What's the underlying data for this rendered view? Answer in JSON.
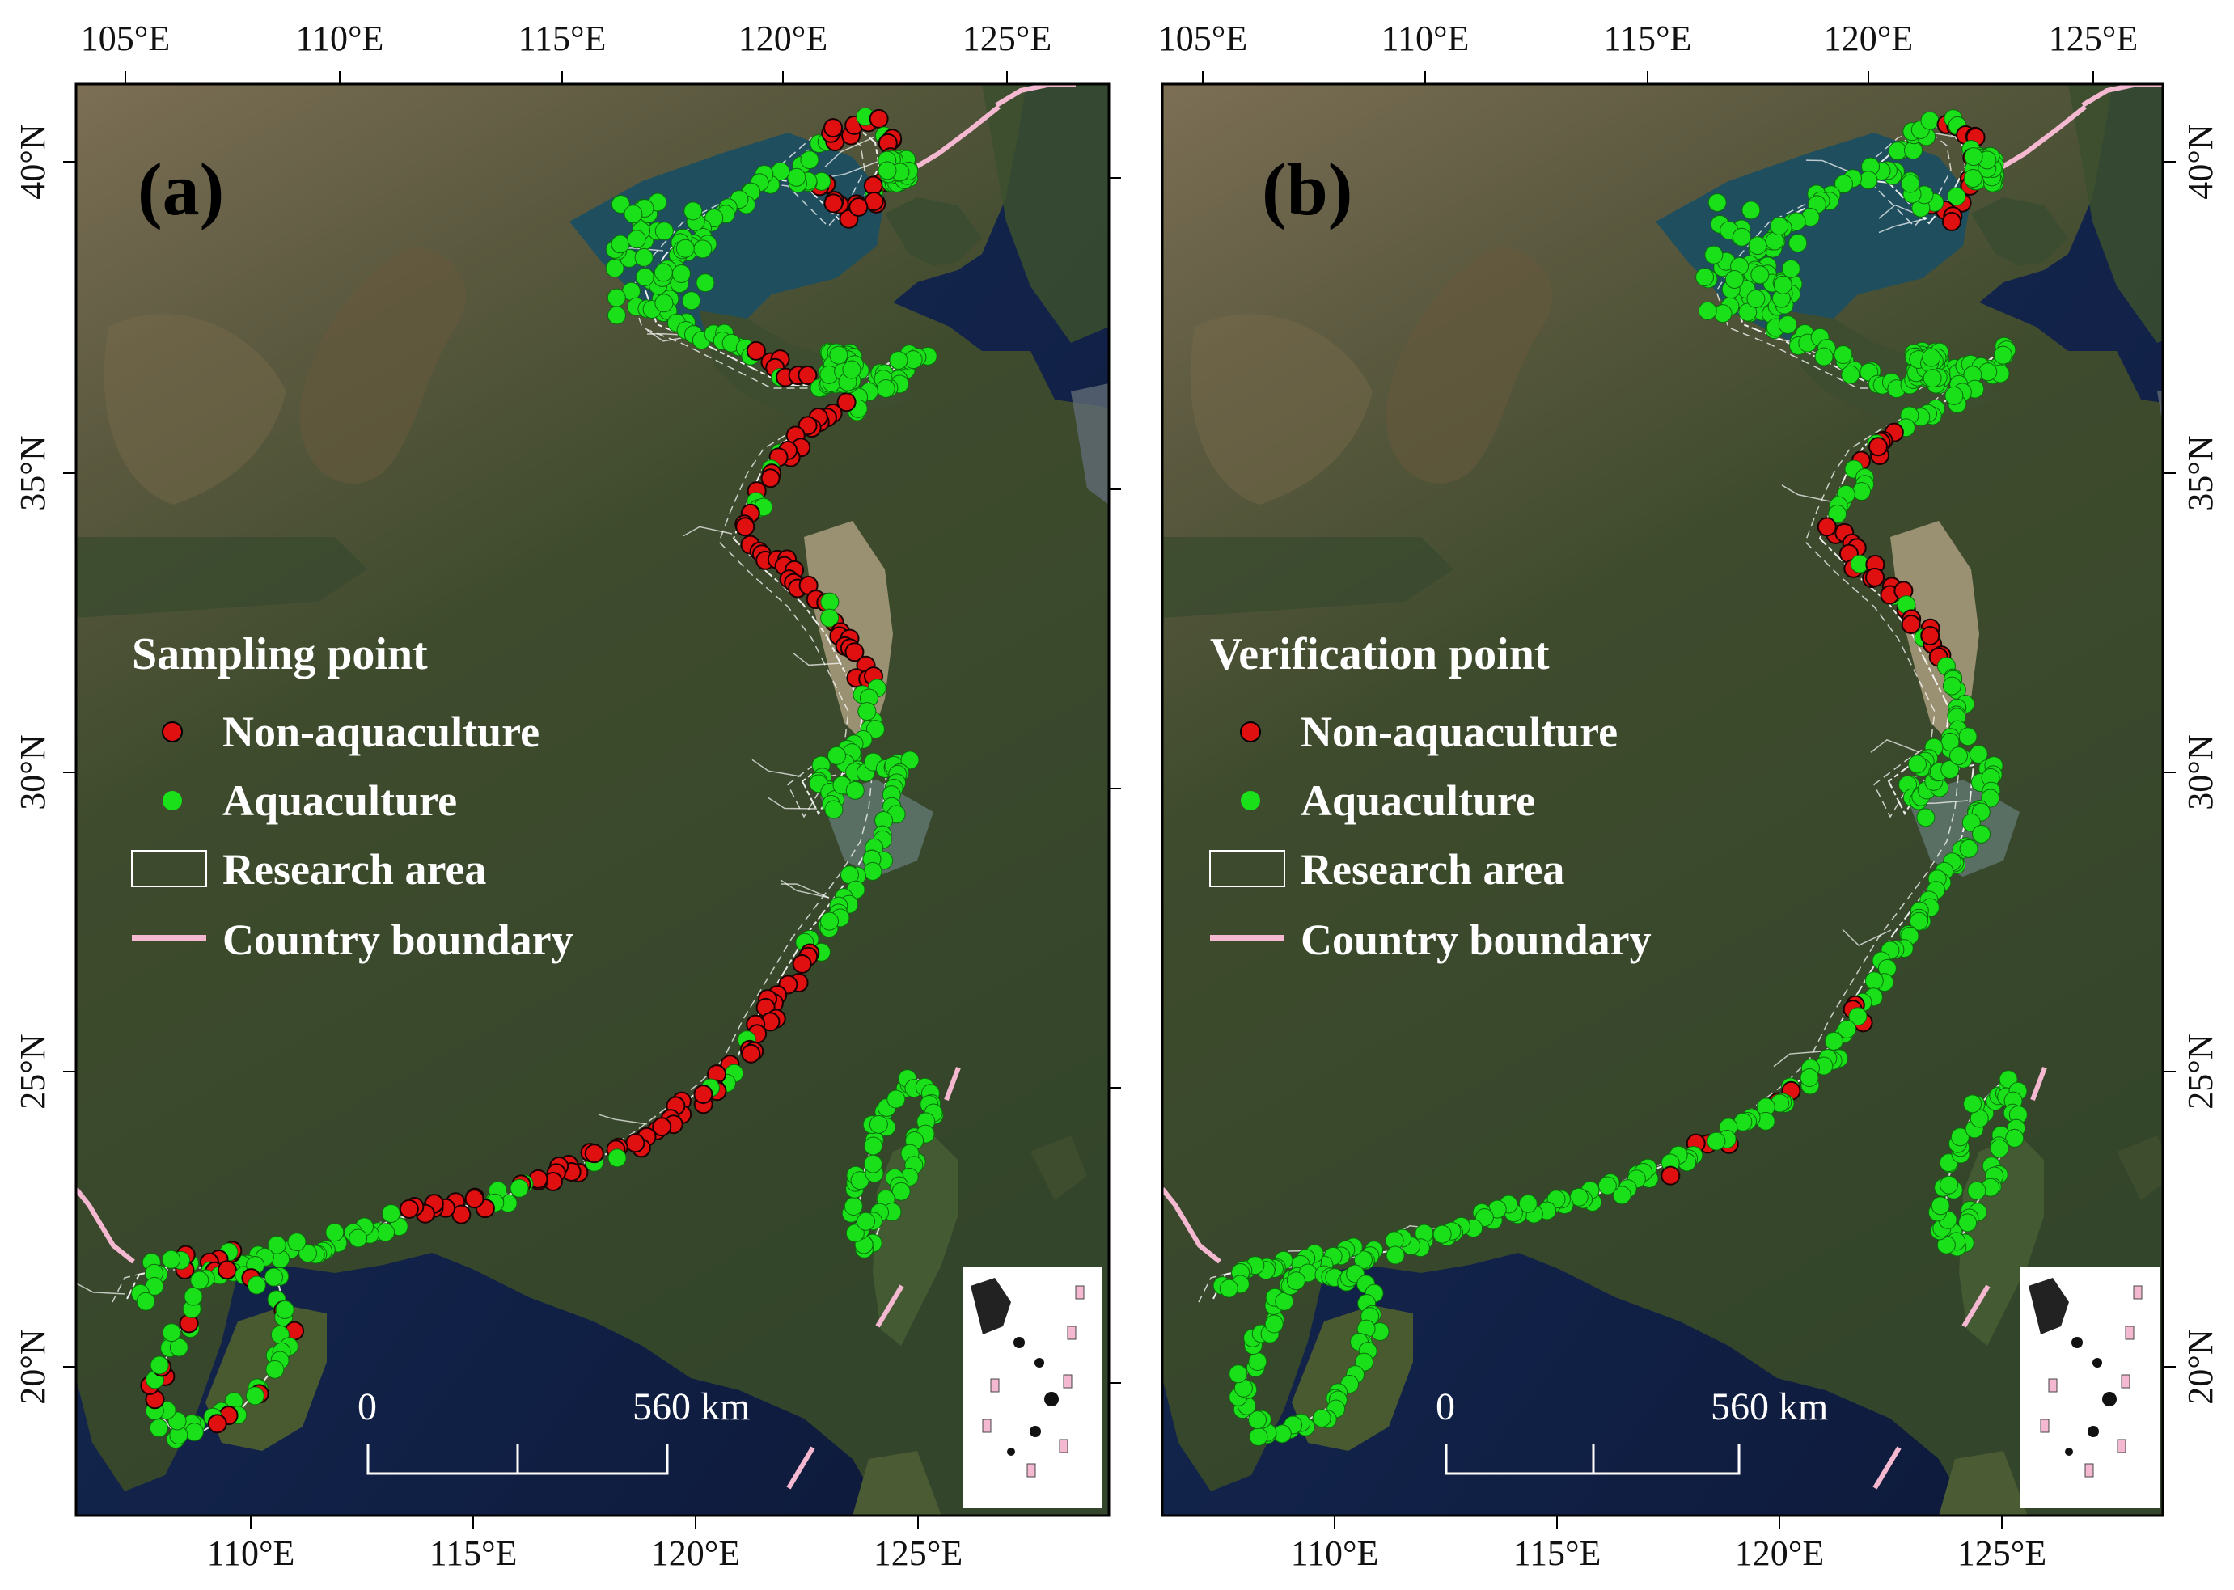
{
  "panels": [
    {
      "label": "(a)",
      "legend_title": "Sampling point",
      "legend": {
        "non_aquaculture": "Non-aquaculture",
        "aquaculture": "Aquaculture",
        "research_area": "Research area",
        "country_boundary": "Country boundary"
      },
      "scale": {
        "zero": "0",
        "max": "560 km"
      }
    },
    {
      "label": "(b)",
      "legend_title": "Verification point",
      "legend": {
        "non_aquaculture": "Non-aquaculture",
        "aquaculture": "Aquaculture",
        "research_area": "Research area",
        "country_boundary": "Country boundary"
      },
      "scale": {
        "zero": "0",
        "max": "560 km"
      }
    }
  ],
  "axes": {
    "top_lon_labels": [
      "105°E",
      "110°E",
      "115°E",
      "120°E",
      "125°E"
    ],
    "bottom_lon_labels": [
      "110°E",
      "115°E",
      "120°E",
      "125°E"
    ],
    "lat_labels": [
      "40°N",
      "35°N",
      "30°N",
      "25°N",
      "20°N"
    ]
  },
  "colors": {
    "non_aquaculture": "#e01010",
    "aquaculture": "#19e019",
    "country_boundary": "#f4b8d0",
    "research_area": "#ffffff",
    "land": "#3c4a2c",
    "sea": "#0f1a38"
  }
}
